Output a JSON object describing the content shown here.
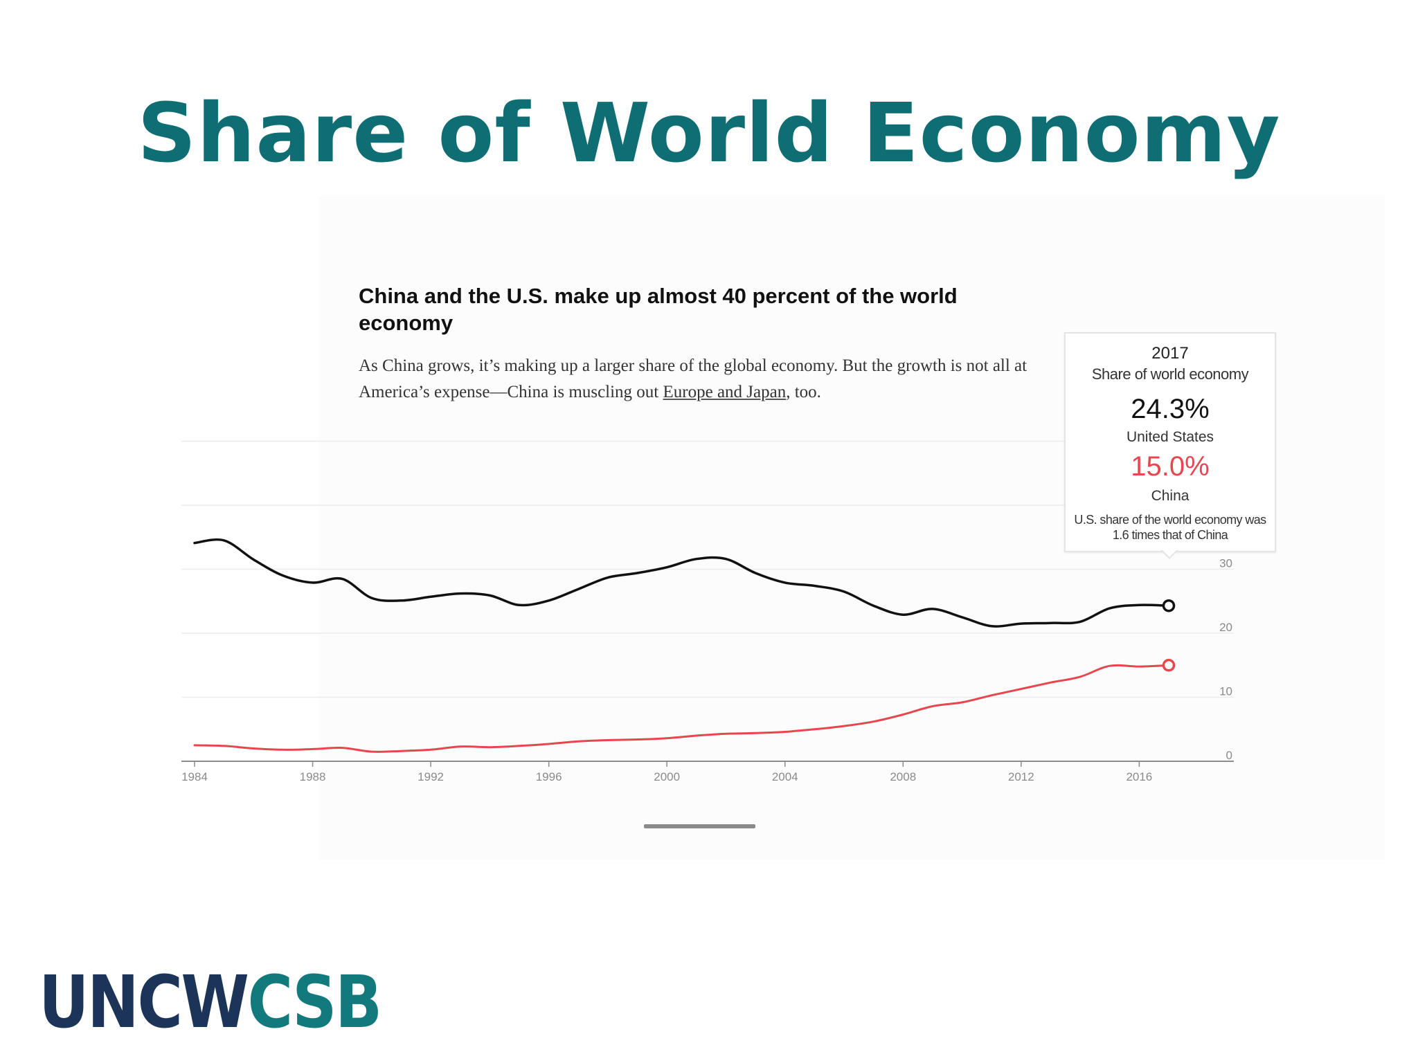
{
  "slide": {
    "title": "Share of World Economy",
    "logo": {
      "part1": "UNCW",
      "part2": "CSB"
    }
  },
  "chart_header": {
    "headline": "China and the U.S. make up almost 40 percent of the world economy",
    "dek_before": "As China grows, it’s making up a larger share of the global economy. But the growth is not all at America’s expense—China is muscling out ",
    "dek_link": "Europe and Japan",
    "dek_after": ", too."
  },
  "tooltip": {
    "year": "2017",
    "metric": "Share of world economy",
    "us_value": "24.3%",
    "us_label": "United States",
    "china_value": "15.0%",
    "china_label": "China",
    "note": "U.S. share of the world economy was 1.6 times that of China"
  },
  "colors": {
    "title": "#0f6e73",
    "us_series": "#111111",
    "china_series": "#e8464e",
    "logo_uncw": "#1d3459",
    "logo_csb": "#127a7c"
  },
  "chart_data": {
    "type": "line",
    "title": "China and the U.S. make up almost 40 percent of the world economy",
    "xlabel": "",
    "ylabel": "",
    "xlim": [
      1984,
      2017
    ],
    "ylim": [
      0,
      50
    ],
    "x_ticks": [
      1984,
      1988,
      1992,
      1996,
      2000,
      2004,
      2008,
      2012,
      2016
    ],
    "y_ticks": [
      0,
      10,
      20,
      30
    ],
    "grid": true,
    "x": [
      1984,
      1985,
      1986,
      1987,
      1988,
      1989,
      1990,
      1991,
      1992,
      1993,
      1994,
      1995,
      1996,
      1997,
      1998,
      1999,
      2000,
      2001,
      2002,
      2003,
      2004,
      2005,
      2006,
      2007,
      2008,
      2009,
      2010,
      2011,
      2012,
      2013,
      2014,
      2015,
      2016,
      2017
    ],
    "series": [
      {
        "name": "United States",
        "color": "#111111",
        "values": [
          34.1,
          34.5,
          31.5,
          29.0,
          27.9,
          28.5,
          25.5,
          25.1,
          25.7,
          26.2,
          25.9,
          24.4,
          25.1,
          26.9,
          28.7,
          29.4,
          30.3,
          31.6,
          31.6,
          29.4,
          27.9,
          27.4,
          26.5,
          24.3,
          22.9,
          23.8,
          22.5,
          21.1,
          21.5,
          21.6,
          21.8,
          23.9,
          24.4,
          24.3
        ]
      },
      {
        "name": "China",
        "color": "#e8464e",
        "values": [
          2.5,
          2.4,
          2.0,
          1.8,
          1.9,
          2.1,
          1.5,
          1.6,
          1.8,
          2.3,
          2.2,
          2.4,
          2.7,
          3.1,
          3.3,
          3.4,
          3.6,
          4.0,
          4.3,
          4.4,
          4.6,
          5.0,
          5.5,
          6.2,
          7.3,
          8.6,
          9.2,
          10.3,
          11.3,
          12.3,
          13.2,
          14.9,
          14.8,
          15.0
        ]
      }
    ],
    "highlight": {
      "x": 2017,
      "us": 24.3,
      "china": 15.0
    }
  }
}
